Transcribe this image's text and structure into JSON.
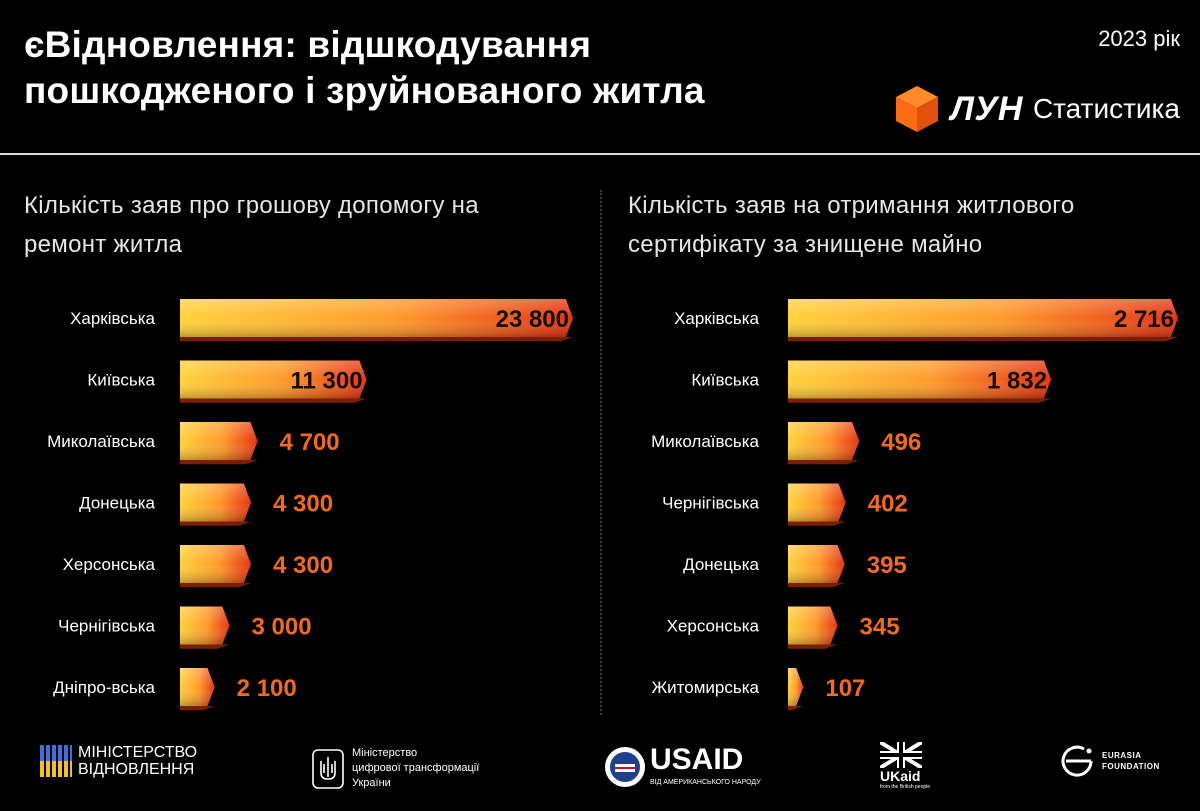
{
  "header": {
    "title": "єВідновлення: відшкодування пошкодженого і зруйнованого житла",
    "year": "2023 рік",
    "brand_name": "ЛУН",
    "brand_sub": "Статистика"
  },
  "colors": {
    "background": "#000000",
    "bar_light": "#ffd23a",
    "bar_dark": "#e63312",
    "value_inside": "#111111",
    "value_outside": "#f26a1b",
    "brand_accent": "#ff6a13"
  },
  "chart_data": [
    {
      "type": "bar",
      "orientation": "horizontal",
      "title": "Кількість заяв про грошову допомогу на ремонт житла",
      "categories": [
        "Харківська",
        "Київська",
        "Миколаївська",
        "Донецька",
        "Херсонська",
        "Чернігівська",
        "Дніпро-вська"
      ],
      "values": [
        23800,
        11300,
        4700,
        4300,
        4300,
        3000,
        2100
      ],
      "value_labels": [
        "23 800",
        "11 300",
        "4 700",
        "4 300",
        "4 300",
        "3 000",
        "2 100"
      ],
      "xlim": [
        0,
        23800
      ],
      "grid": false
    },
    {
      "type": "bar",
      "orientation": "horizontal",
      "title": "Кількість заяв на отримання житлового сертифікату за знищене майно",
      "categories": [
        "Харківська",
        "Київська",
        "Миколаївська",
        "Чернігівська",
        "Донецька",
        "Херсонська",
        "Житомирська"
      ],
      "values": [
        2716,
        1832,
        496,
        402,
        395,
        345,
        107
      ],
      "value_labels": [
        "2 716",
        "1 832",
        "496",
        "402",
        "395",
        "345",
        "107"
      ],
      "xlim": [
        0,
        2716
      ],
      "grid": false
    }
  ],
  "footer": {
    "ministry_line1": "МІНІСТЕРСТВО",
    "ministry_line2": "ВІДНОВЛЕННЯ",
    "digital_line1": "Міністерство",
    "digital_line2": "цифрової трансформації",
    "digital_line3": "України",
    "usaid": "USAID",
    "usaid_sub": "ВІД АМЕРИКАНСЬКОГО НАРОДУ",
    "ukaid": "UKaid",
    "ukaid_sub": "from the British people",
    "eurasia_line1": "EURASIA",
    "eurasia_line2": "FOUNDATION"
  }
}
